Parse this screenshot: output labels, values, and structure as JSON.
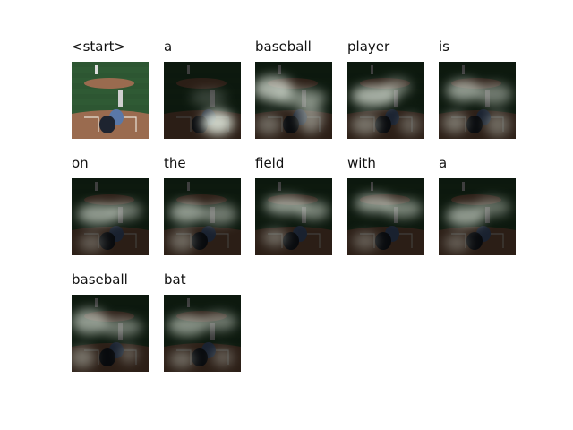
{
  "tokens": [
    "<start>",
    "a",
    "baseball",
    "player",
    "is",
    "on",
    "the",
    "field",
    "with",
    "a",
    "baseball",
    "bat"
  ],
  "colors": {
    "grass": "#2f5a34",
    "dirt": "#9a6b4f",
    "attention_glow": "#e8f0e4",
    "dark_overlay": "#000000",
    "uniform": "#5a78a8"
  }
}
